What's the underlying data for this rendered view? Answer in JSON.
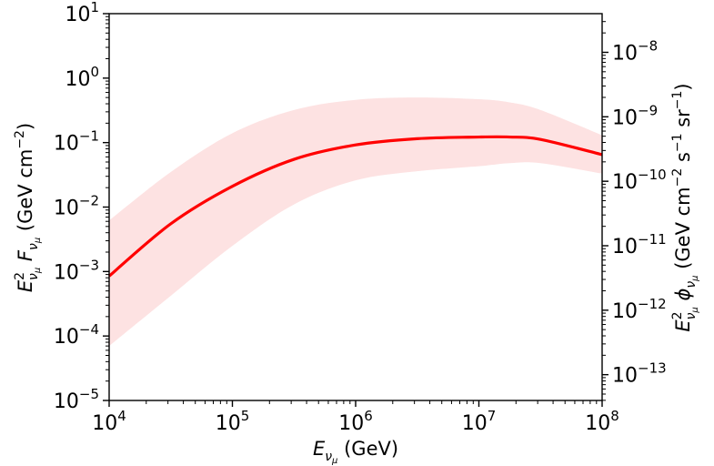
{
  "chart_data": {
    "type": "area",
    "xscale": "log",
    "yscale": "log",
    "xlim": [
      10000,
      100000000
    ],
    "ylim": [
      1e-05,
      10
    ],
    "x_ticks": [
      {
        "value": 10000,
        "base": "10",
        "exp": "4"
      },
      {
        "value": 100000,
        "base": "10",
        "exp": "5"
      },
      {
        "value": 1000000,
        "base": "10",
        "exp": "6"
      },
      {
        "value": 10000000,
        "base": "10",
        "exp": "7"
      },
      {
        "value": 100000000,
        "base": "10",
        "exp": "8"
      }
    ],
    "y_ticks": [
      {
        "value": 1e-05,
        "base": "10",
        "exp": "−5"
      },
      {
        "value": 0.0001,
        "base": "10",
        "exp": "−4"
      },
      {
        "value": 0.001,
        "base": "10",
        "exp": "−3"
      },
      {
        "value": 0.01,
        "base": "10",
        "exp": "−2"
      },
      {
        "value": 0.1,
        "base": "10",
        "exp": "−1"
      },
      {
        "value": 1,
        "base": "10",
        "exp": "0"
      },
      {
        "value": 10,
        "base": "10",
        "exp": "1"
      }
    ],
    "y2lim": [
      3.98e-14,
      3.98e-08
    ],
    "y2_ticks": [
      {
        "value": 1e-13,
        "base": "10",
        "exp": "−13"
      },
      {
        "value": 1e-12,
        "base": "10",
        "exp": "−12"
      },
      {
        "value": 1e-11,
        "base": "10",
        "exp": "−11"
      },
      {
        "value": 1e-10,
        "base": "10",
        "exp": "−10"
      },
      {
        "value": 1e-09,
        "base": "10",
        "exp": "−9"
      },
      {
        "value": 1e-08,
        "base": "10",
        "exp": "−8"
      }
    ],
    "xlabel": {
      "pre": "E",
      "sub": "ν",
      "subsub": "μ",
      "post": " (GeV)"
    },
    "ylabel": {
      "pre": "E",
      "sup": "2",
      "sub": "ν",
      "subsub": "μ",
      "mid": "F",
      "mid_sub": "ν",
      "mid_subsub": "μ",
      "post": " (GeV cm",
      "post_sup": "−2",
      "post_end": ")"
    },
    "y2label": {
      "pre": "E",
      "sup": "2",
      "sub": "ν",
      "subsub": "μ",
      "mid": "ϕ",
      "mid_sub": "ν",
      "mid_subsub": "μ",
      "post": " (GeV cm",
      "post_sup1": "−2",
      "post_mid": " s",
      "post_sup2": "−1",
      "post_mid2": " sr",
      "post_sup3": "−1",
      "post_end": ")"
    },
    "x": [
      10000,
      31623,
      100000,
      316228,
      1000000,
      3162278,
      10000000,
      17782794,
      31622777,
      100000000
    ],
    "series": [
      {
        "values": [
          0.00085,
          0.0055,
          0.021,
          0.055,
          0.092,
          0.115,
          0.122,
          0.122,
          0.112,
          0.065
        ],
        "color": "#ff0000"
      }
    ],
    "band": {
      "lower": [
        7e-05,
        0.00042,
        0.0025,
        0.011,
        0.026,
        0.036,
        0.043,
        0.048,
        0.048,
        0.033
      ],
      "upper": [
        0.0062,
        0.035,
        0.14,
        0.32,
        0.46,
        0.5,
        0.47,
        0.42,
        0.32,
        0.13
      ],
      "color": "#fde2e2"
    },
    "grid": false,
    "legend": "none"
  }
}
